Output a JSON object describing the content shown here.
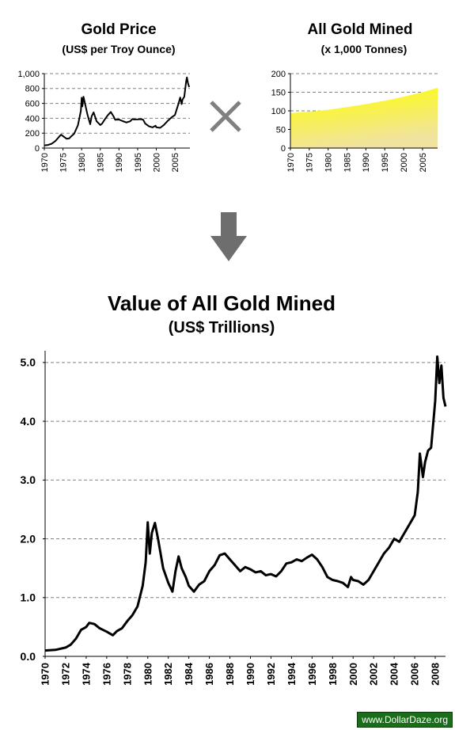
{
  "panels": {
    "gold_price": {
      "title": "Gold Price",
      "subtitle": "(US$ per Troy Ounce)"
    },
    "gold_mined": {
      "title": "All Gold Mined",
      "subtitle": "(x 1,000 Tonnes)"
    },
    "value": {
      "title": "Value of All Gold Mined",
      "subtitle": "(US$ Trillions)"
    }
  },
  "operator_icon": "multiply-x-icon",
  "arrow_icon": "arrow-down-icon",
  "colors": {
    "line": "#000000",
    "grid": "#808080",
    "fill_top": "#ffff00",
    "fill_bottom": "#f0e3a0",
    "operator": "#808080",
    "badge_bg": "#1a6e1a"
  },
  "watermark": "www.DollarDaze.org",
  "chart_data": [
    {
      "type": "line",
      "title": "Gold Price",
      "subtitle": "(US$ per Troy Ounce)",
      "xlim": [
        1970,
        2009
      ],
      "ylim": [
        0,
        1000
      ],
      "y_ticks": [
        0,
        200,
        400,
        600,
        800,
        1000
      ],
      "y_tick_labels": [
        "0",
        "200",
        "400",
        "600",
        "800",
        "1,000"
      ],
      "x_ticks": [
        1970,
        1975,
        1980,
        1985,
        1990,
        1995,
        2000,
        2005
      ],
      "x_tick_labels": [
        "1970",
        "1975",
        "1980",
        "1985",
        "1990",
        "1995",
        "2000",
        "2005"
      ],
      "grid": true,
      "x": [
        1970,
        1971,
        1972,
        1973,
        1974,
        1974.5,
        1975,
        1976,
        1976.7,
        1977,
        1978,
        1979,
        1979.8,
        1980,
        1980.2,
        1980.5,
        1980.9,
        1981.5,
        1982.3,
        1982.7,
        1983.2,
        1984,
        1985,
        1985.5,
        1986,
        1987,
        1987.8,
        1988.5,
        1989,
        1990,
        1991,
        1992,
        1993,
        1993.6,
        1994,
        1995,
        1996,
        1996.5,
        1997,
        1998,
        1999,
        1999.8,
        2000,
        2001,
        2002,
        2003,
        2004,
        2005,
        2006,
        2006.4,
        2006.8,
        2007,
        2007.5,
        2008,
        2008.2,
        2008.5,
        2008.8
      ],
      "values": [
        36,
        41,
        58,
        97,
        154,
        180,
        161,
        125,
        130,
        148,
        193,
        307,
        500,
        675,
        560,
        690,
        600,
        460,
        320,
        430,
        480,
        360,
        310,
        330,
        370,
        440,
        485,
        430,
        380,
        383,
        362,
        344,
        360,
        390,
        384,
        385,
        388,
        380,
        331,
        294,
        278,
        300,
        280,
        271,
        310,
        363,
        409,
        445,
        604,
        680,
        590,
        650,
        690,
        900,
        950,
        870,
        820
      ]
    },
    {
      "type": "area",
      "title": "All Gold Mined",
      "subtitle": "(x 1,000 Tonnes)",
      "xlim": [
        1970,
        2009
      ],
      "ylim": [
        0,
        200
      ],
      "y_ticks": [
        0,
        50,
        100,
        150,
        200
      ],
      "y_tick_labels": [
        "0",
        "50",
        "100",
        "150",
        "200"
      ],
      "x_ticks": [
        1970,
        1975,
        1980,
        1985,
        1990,
        1995,
        2000,
        2005
      ],
      "x_tick_labels": [
        "1970",
        "1975",
        "1980",
        "1985",
        "1990",
        "1995",
        "2000",
        "2005"
      ],
      "grid": true,
      "x": [
        1970,
        1975,
        1980,
        1985,
        1990,
        1995,
        2000,
        2005,
        2009
      ],
      "values": [
        94,
        98,
        103,
        110,
        118,
        127,
        138,
        150,
        162
      ]
    },
    {
      "type": "line",
      "title": "Value of All Gold Mined",
      "subtitle": "(US$ Trillions)",
      "xlim": [
        1970,
        2009
      ],
      "ylim": [
        0,
        5.2
      ],
      "y_ticks": [
        0,
        1,
        2,
        3,
        4,
        5
      ],
      "y_tick_labels": [
        "0.0",
        "1.0",
        "2.0",
        "3.0",
        "4.0",
        "5.0"
      ],
      "x_ticks": [
        1970,
        1972,
        1974,
        1976,
        1978,
        1980,
        1982,
        1984,
        1986,
        1988,
        1990,
        1992,
        1994,
        1996,
        1998,
        2000,
        2002,
        2004,
        2006,
        2008
      ],
      "x_tick_labels": [
        "1970",
        "1972",
        "1974",
        "1976",
        "1978",
        "1980",
        "1982",
        "1984",
        "1986",
        "1988",
        "1990",
        "1992",
        "1994",
        "1996",
        "1998",
        "2000",
        "2002",
        "2004",
        "2006",
        "2008"
      ],
      "grid": true,
      "x": [
        1970,
        1971,
        1972,
        1972.5,
        1973,
        1973.5,
        1974,
        1974.3,
        1974.8,
        1975.3,
        1976,
        1976.6,
        1977,
        1977.5,
        1978,
        1978.5,
        1979,
        1979.5,
        1979.8,
        1980,
        1980.2,
        1980.4,
        1980.7,
        1981,
        1981.5,
        1982,
        1982.4,
        1982.7,
        1983,
        1983.3,
        1983.7,
        1984,
        1984.5,
        1985,
        1985.5,
        1986,
        1986.5,
        1987,
        1987.5,
        1988,
        1988.5,
        1989,
        1989.5,
        1990,
        1990.5,
        1991,
        1991.5,
        1992,
        1992.5,
        1993,
        1993.5,
        1994,
        1994.5,
        1995,
        1995.5,
        1996,
        1996.5,
        1997,
        1997.5,
        1998,
        1998.5,
        1999,
        1999.5,
        1999.8,
        2000,
        2000.5,
        2001,
        2001.5,
        2002,
        2002.5,
        2003,
        2003.5,
        2004,
        2004.5,
        2005,
        2005.5,
        2006,
        2006.3,
        2006.5,
        2006.8,
        2007,
        2007.3,
        2007.6,
        2008,
        2008.2,
        2008.4,
        2008.6,
        2008.8,
        2009
      ],
      "values": [
        0.1,
        0.11,
        0.15,
        0.2,
        0.3,
        0.45,
        0.5,
        0.57,
        0.55,
        0.48,
        0.42,
        0.36,
        0.43,
        0.48,
        0.6,
        0.7,
        0.85,
        1.2,
        1.6,
        2.28,
        1.75,
        2.1,
        2.27,
        2.0,
        1.5,
        1.25,
        1.1,
        1.45,
        1.7,
        1.5,
        1.35,
        1.2,
        1.1,
        1.22,
        1.28,
        1.45,
        1.55,
        1.72,
        1.75,
        1.65,
        1.55,
        1.45,
        1.52,
        1.48,
        1.43,
        1.45,
        1.38,
        1.4,
        1.36,
        1.45,
        1.58,
        1.6,
        1.65,
        1.62,
        1.68,
        1.73,
        1.65,
        1.52,
        1.35,
        1.3,
        1.28,
        1.25,
        1.18,
        1.35,
        1.3,
        1.28,
        1.22,
        1.3,
        1.45,
        1.6,
        1.75,
        1.85,
        2.0,
        1.95,
        2.1,
        2.25,
        2.4,
        2.8,
        3.45,
        3.05,
        3.3,
        3.5,
        3.55,
        4.35,
        5.1,
        4.65,
        4.95,
        4.4,
        4.25
      ]
    }
  ]
}
